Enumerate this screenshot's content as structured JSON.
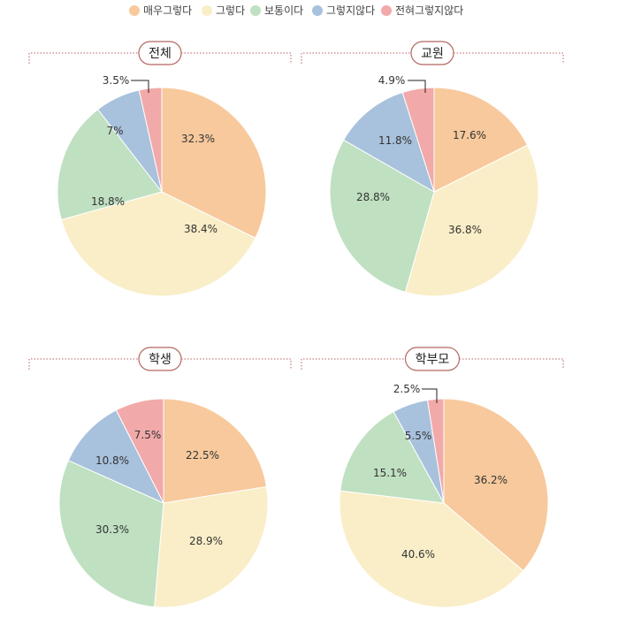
{
  "legend": {
    "items": [
      {
        "label": "매우그렇다",
        "color": "#f7c99c"
      },
      {
        "label": "그렇다",
        "color": "#faeec8"
      },
      {
        "label": "보통이다",
        "color": "#bfe0c1"
      },
      {
        "label": "그렇지않다",
        "color": "#a8c1dc"
      },
      {
        "label": "전혀그렇지않다",
        "color": "#f2a9a9"
      }
    ]
  },
  "chart_data": [
    {
      "type": "pie",
      "title": "전체",
      "categories": [
        "매우그렇다",
        "그렇다",
        "보통이다",
        "그렇지않다",
        "전혀그렇지않다"
      ],
      "values": [
        32.3,
        38.4,
        18.8,
        7,
        3.5
      ],
      "labels": [
        "32.3%",
        "38.4%",
        "18.8%",
        "7%",
        "3.5%"
      ]
    },
    {
      "type": "pie",
      "title": "교원",
      "categories": [
        "매우그렇다",
        "그렇다",
        "보통이다",
        "그렇지않다",
        "전혀그렇지않다"
      ],
      "values": [
        17.6,
        36.8,
        28.8,
        11.8,
        4.9
      ],
      "labels": [
        "17.6%",
        "36.8%",
        "28.8%",
        "11.8%",
        "4.9%"
      ]
    },
    {
      "type": "pie",
      "title": "학생",
      "categories": [
        "매우그렇다",
        "그렇다",
        "보통이다",
        "그렇지않다",
        "전혀그렇지않다"
      ],
      "values": [
        22.5,
        28.9,
        30.3,
        10.8,
        7.5
      ],
      "labels": [
        "22.5%",
        "28.9%",
        "30.3%",
        "10.8%",
        "7.5%"
      ]
    },
    {
      "type": "pie",
      "title": "학부모",
      "categories": [
        "매우그렇다",
        "그렇다",
        "보통이다",
        "그렇지않다",
        "전혀그렇지않다"
      ],
      "values": [
        36.2,
        40.6,
        15.1,
        5.5,
        2.5
      ],
      "labels": [
        "36.2%",
        "40.6%",
        "15.1%",
        "5.5%",
        "2.5%"
      ]
    }
  ]
}
